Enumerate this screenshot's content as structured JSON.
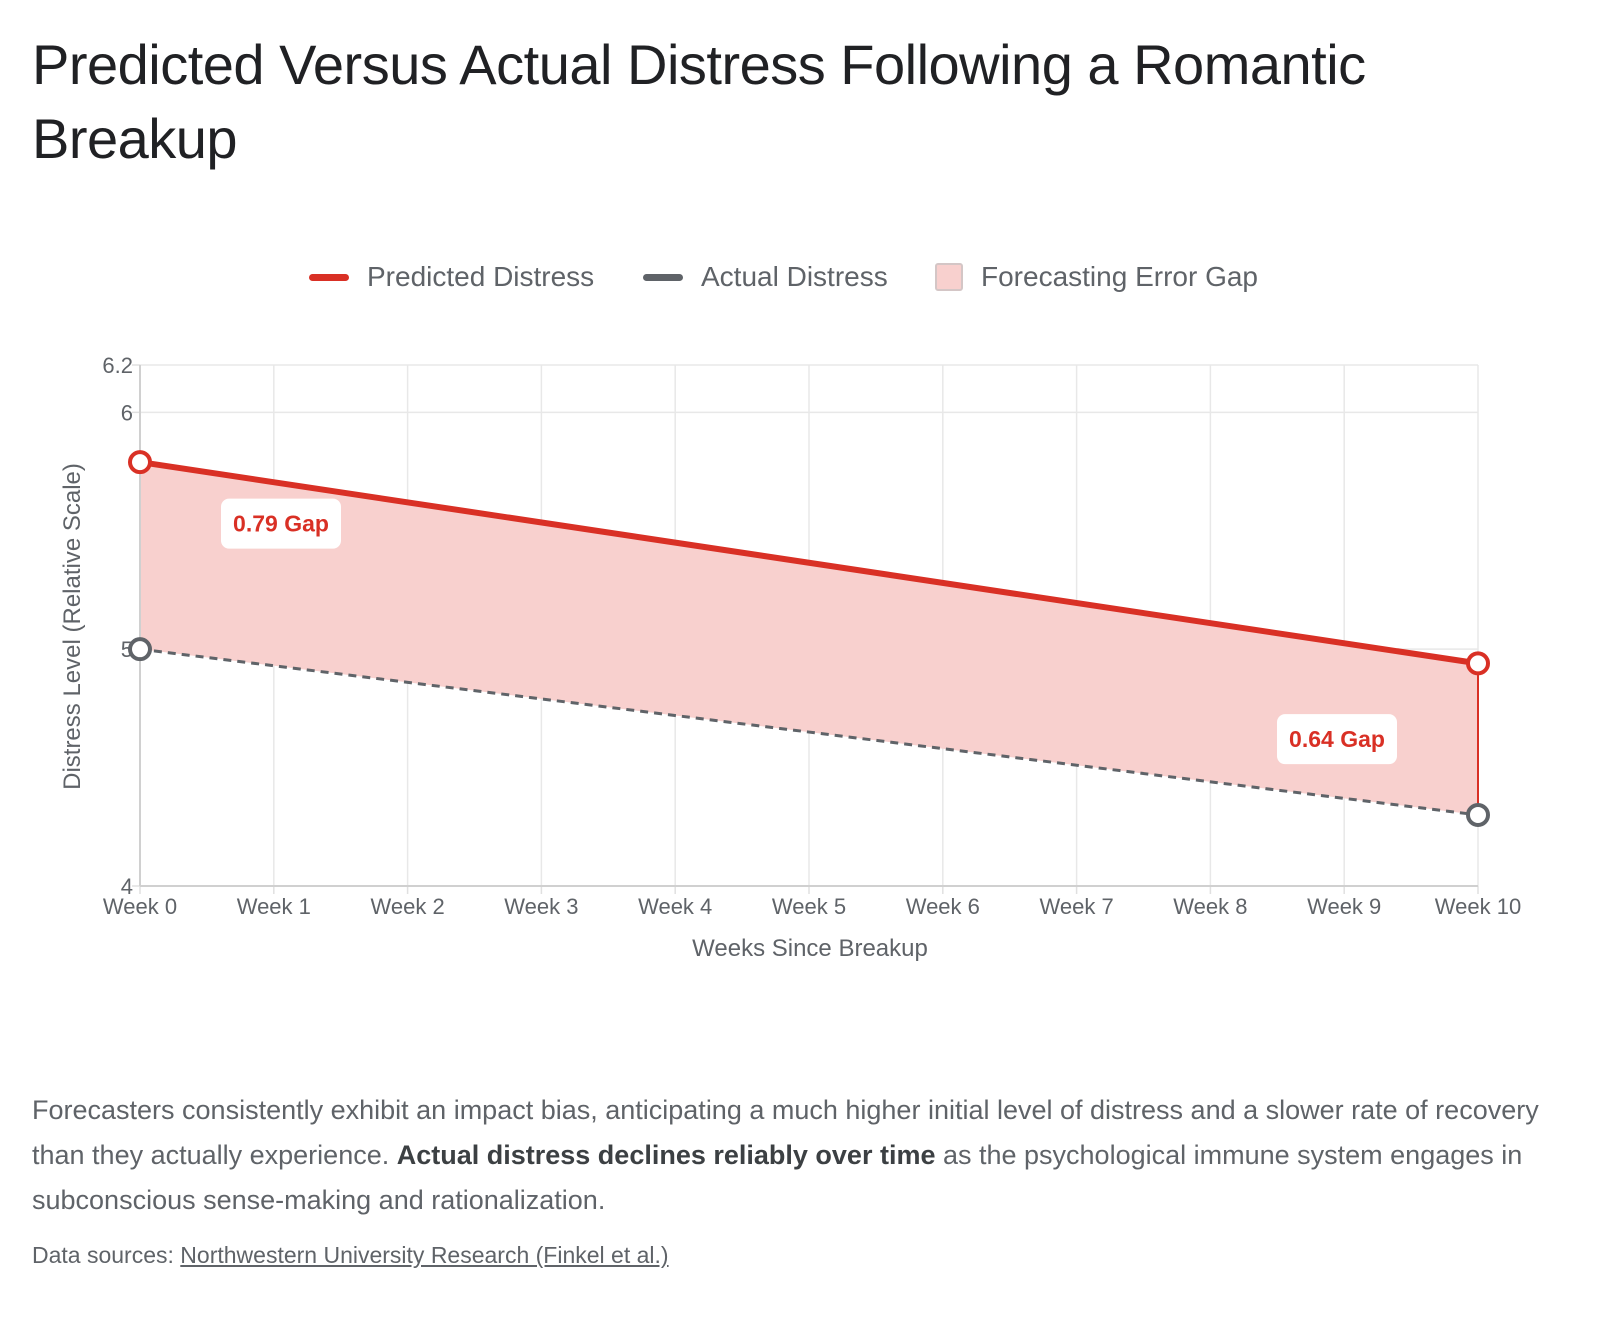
{
  "page": {
    "title": "Predicted Versus Actual Distress Following a Romantic Breakup",
    "description": {
      "part1": "Forecasters consistently exhibit an impact bias, anticipating a much higher initial level of distress and a slower rate of recovery than they actually experience. ",
      "bold": "Actual distress declines reliably over time",
      "part2": " as the psychological immune system engages in subconscious sense-making and rationalization."
    },
    "sources": {
      "label": "Data sources: ",
      "link_text": "Northwestern University Research (Finkel et al.)"
    }
  },
  "legend": {
    "predicted": "Predicted Distress",
    "actual": "Actual Distress",
    "gap": "Forecasting Error Gap"
  },
  "chart_data": {
    "type": "line",
    "title": "Predicted Versus Actual Distress Following a Romantic Breakup",
    "xlabel": "Weeks Since Breakup",
    "ylabel": "Distress Level (Relative Scale)",
    "categories": [
      "Week 0",
      "Week 1",
      "Week 2",
      "Week 3",
      "Week 4",
      "Week 5",
      "Week 6",
      "Week 7",
      "Week 8",
      "Week 9",
      "Week 10"
    ],
    "ylim": [
      4,
      6.2
    ],
    "yticks": [
      "4",
      "5",
      "6",
      "6.2"
    ],
    "grid": true,
    "legend_position": "top",
    "series": [
      {
        "name": "Predicted Distress",
        "x": [
          "Week 0",
          "Week 10"
        ],
        "values": [
          5.79,
          4.94
        ],
        "color": "#d93025",
        "style": "solid",
        "markers": "endpoints"
      },
      {
        "name": "Actual Distress",
        "x": [
          "Week 0",
          "Week 10"
        ],
        "values": [
          5.0,
          4.3
        ],
        "color": "#5f6368",
        "style": "dashed",
        "markers": "endpoints"
      }
    ],
    "fill_between": {
      "name": "Forecasting Error Gap",
      "color": "#f8d0ce"
    },
    "annotations": [
      {
        "text": "0.79 Gap",
        "x": "Week 0",
        "color": "#d93025"
      },
      {
        "text": "0.64 Gap",
        "x": "Week 10",
        "color": "#d93025"
      }
    ]
  }
}
